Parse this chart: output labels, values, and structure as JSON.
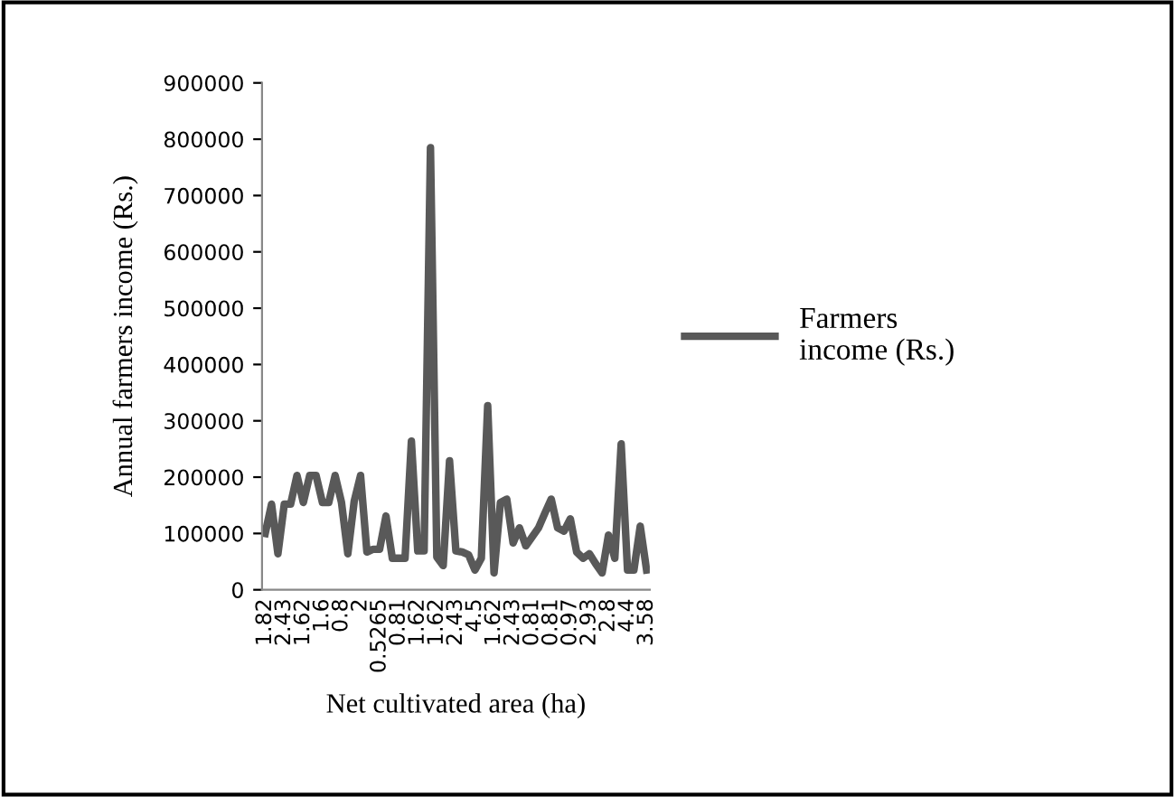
{
  "chart_data": {
    "type": "line",
    "xlabel": "Net cultivated area (ha)",
    "ylabel": "Annual farmers income (Rs.)",
    "categories": [
      "1.82",
      null,
      null,
      "2.43",
      null,
      null,
      "1.62",
      null,
      null,
      "1.6",
      null,
      null,
      "0.8",
      null,
      null,
      "2",
      null,
      null,
      "0.5265",
      null,
      null,
      "0.81",
      null,
      null,
      "1.62",
      null,
      null,
      "1.62",
      null,
      null,
      "2.43",
      null,
      null,
      "4.5",
      null,
      null,
      "1.62",
      null,
      null,
      "2.43",
      null,
      null,
      "0.81",
      null,
      null,
      "0.81",
      null,
      null,
      "0.97",
      null,
      null,
      "2.93",
      null,
      null,
      "2.8",
      null,
      null,
      "4.4",
      null,
      null,
      "3.58"
    ],
    "series": [
      {
        "name": "Farmers\nincome (Rs.)",
        "color": "#595959",
        "values": [
          100000,
          152000,
          64000,
          152000,
          152000,
          203000,
          155000,
          203000,
          203000,
          155000,
          155000,
          203000,
          155000,
          64000,
          157000,
          203000,
          67000,
          72000,
          72000,
          131000,
          56000,
          56000,
          56000,
          264000,
          69000,
          69000,
          785000,
          58000,
          43000,
          229000,
          69000,
          67000,
          62000,
          35000,
          56000,
          327000,
          30000,
          155000,
          161000,
          83000,
          110000,
          78000,
          94000,
          110000,
          136000,
          161000,
          110000,
          104000,
          126000,
          67000,
          56000,
          64000,
          46000,
          30000,
          97000,
          56000,
          259000,
          35000,
          35000,
          113000,
          35000
        ]
      }
    ],
    "ylim": [
      0,
      900000
    ],
    "yticks": [
      0,
      100000,
      200000,
      300000,
      400000,
      500000,
      600000,
      700000,
      800000,
      900000
    ],
    "grid": false,
    "legend": "right",
    "marker": "none",
    "line_style": "solid"
  }
}
